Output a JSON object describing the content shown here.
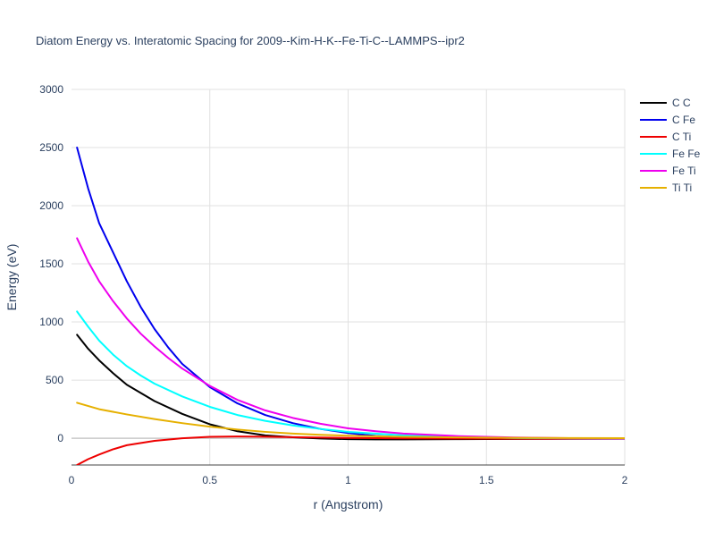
{
  "chart_data": {
    "type": "line",
    "title": "Diatom Energy vs. Interatomic Spacing for 2009--Kim-H-K--Fe-Ti-C--LAMMPS--ipr2",
    "xlabel": "r (Angstrom)",
    "ylabel": "Energy (eV)",
    "xlim": [
      0,
      2
    ],
    "ylim": [
      -230,
      3000
    ],
    "xticks": [
      0,
      0.5,
      1,
      1.5,
      2
    ],
    "xtick_labels": [
      "0",
      "0.5",
      "1",
      "1.5",
      "2"
    ],
    "yticks": [
      0,
      500,
      1000,
      1500,
      2000,
      2500,
      3000
    ],
    "ytick_labels": [
      "0",
      "500",
      "1000",
      "1500",
      "2000",
      "2500",
      "3000"
    ],
    "grid": true,
    "legend_position": "top-right",
    "series": [
      {
        "name": "C C",
        "color": "#000000",
        "x": [
          0.02,
          0.06,
          0.1,
          0.15,
          0.2,
          0.3,
          0.4,
          0.5,
          0.6,
          0.7,
          0.8,
          0.9,
          1.0,
          1.1,
          1.2,
          1.4,
          1.6,
          1.8,
          2.0
        ],
        "y": [
          890,
          770,
          670,
          560,
          460,
          320,
          210,
          120,
          60,
          25,
          8,
          -2,
          -8,
          -10,
          -10,
          -8,
          -6,
          -4,
          -3
        ]
      },
      {
        "name": "C Fe",
        "color": "#0000ee",
        "x": [
          0.02,
          0.06,
          0.1,
          0.15,
          0.2,
          0.25,
          0.3,
          0.35,
          0.4,
          0.5,
          0.6,
          0.7,
          0.8,
          0.9,
          1.0,
          1.1,
          1.2,
          1.4,
          1.6,
          1.8,
          2.0
        ],
        "y": [
          2500,
          2150,
          1850,
          1600,
          1350,
          1130,
          940,
          780,
          640,
          440,
          300,
          200,
          130,
          80,
          45,
          20,
          8,
          0,
          -3,
          -4,
          -4
        ]
      },
      {
        "name": "C Ti",
        "color": "#ee0000",
        "x": [
          0.02,
          0.06,
          0.1,
          0.15,
          0.2,
          0.3,
          0.4,
          0.5,
          0.6,
          0.7,
          0.8,
          1.0,
          1.2,
          1.4,
          1.6,
          1.8,
          2.0
        ],
        "y": [
          -230,
          -180,
          -140,
          -95,
          -60,
          -22,
          0,
          12,
          15,
          13,
          9,
          3,
          -1,
          -3,
          -4,
          -4,
          -4
        ]
      },
      {
        "name": "Fe Fe",
        "color": "#00ffff",
        "x": [
          0.02,
          0.06,
          0.1,
          0.15,
          0.2,
          0.25,
          0.3,
          0.4,
          0.5,
          0.6,
          0.7,
          0.8,
          0.9,
          1.0,
          1.2,
          1.4,
          1.6,
          1.8,
          2.0
        ],
        "y": [
          1090,
          960,
          840,
          720,
          620,
          540,
          470,
          360,
          270,
          200,
          150,
          110,
          80,
          55,
          25,
          10,
          3,
          0,
          -1
        ]
      },
      {
        "name": "Fe Ti",
        "color": "#ee00ee",
        "x": [
          0.02,
          0.06,
          0.1,
          0.15,
          0.2,
          0.25,
          0.3,
          0.35,
          0.4,
          0.5,
          0.6,
          0.7,
          0.8,
          0.9,
          1.0,
          1.1,
          1.2,
          1.4,
          1.6,
          1.8,
          2.0
        ],
        "y": [
          1720,
          1520,
          1350,
          1180,
          1030,
          900,
          790,
          690,
          600,
          450,
          330,
          240,
          175,
          125,
          85,
          60,
          40,
          18,
          6,
          1,
          -1
        ]
      },
      {
        "name": "Ti Ti",
        "color": "#e6b000",
        "x": [
          0.02,
          0.1,
          0.2,
          0.3,
          0.4,
          0.5,
          0.6,
          0.7,
          0.8,
          0.9,
          1.0,
          1.2,
          1.4,
          1.6,
          1.8,
          2.0
        ],
        "y": [
          305,
          250,
          205,
          165,
          130,
          100,
          75,
          55,
          40,
          30,
          22,
          12,
          7,
          4,
          2,
          1
        ]
      }
    ]
  }
}
